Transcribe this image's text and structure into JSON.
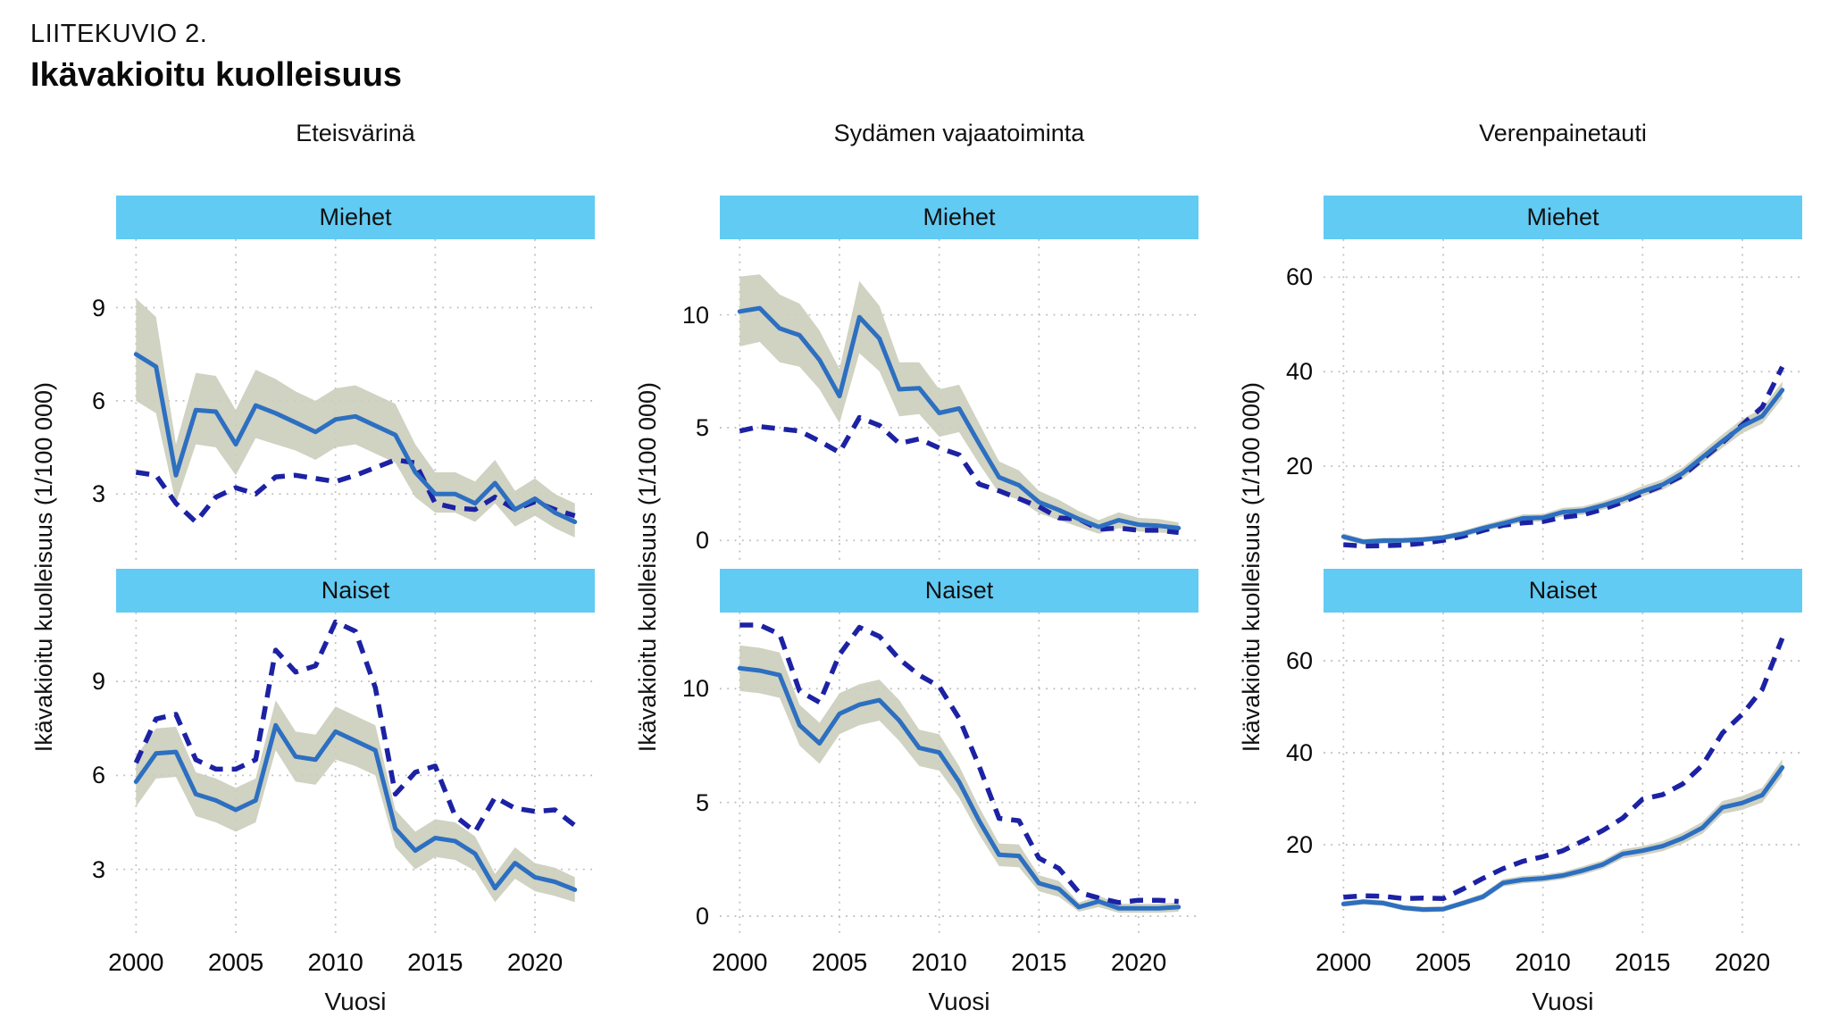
{
  "page": {
    "eyebrow": "LIITEKUVIO 2.",
    "title": "Ikävakioitu kuolleisuus"
  },
  "colors": {
    "header_bar": "#62cbf3",
    "solid_line": "#2d6fc0",
    "dashed_line": "#1c22a3",
    "band": "#cbcdbb",
    "grid": "#bdbdbd",
    "tick": "#999999"
  },
  "y_axis_label": "Ikävakioitu kuolleisuus (1/100 000)",
  "x_axis": {
    "label": "Vuosi",
    "ticks": [
      2000,
      2005,
      2010,
      2015,
      2020
    ],
    "domain": [
      1999,
      2023
    ]
  },
  "panel_labels": {
    "men": "Miehet",
    "women": "Naiset"
  },
  "years": [
    2000,
    2001,
    2002,
    2003,
    2004,
    2005,
    2006,
    2007,
    2008,
    2009,
    2010,
    2011,
    2012,
    2013,
    2014,
    2015,
    2016,
    2017,
    2018,
    2019,
    2020,
    2021,
    2022
  ],
  "chart_data": [
    {
      "type": "line",
      "title": "Eteisvärinä",
      "yticks": [
        3,
        6,
        9
      ],
      "panels": [
        {
          "label": "Miehet",
          "ylim": [
            0.85,
            11.2
          ],
          "solid": [
            7.5,
            7.1,
            3.6,
            5.7,
            5.65,
            4.6,
            5.85,
            5.6,
            5.3,
            5.0,
            5.4,
            5.5,
            5.2,
            4.9,
            3.7,
            3.0,
            3.0,
            2.7,
            3.35,
            2.5,
            2.85,
            2.4,
            2.1
          ],
          "lower": [
            6.0,
            5.6,
            2.7,
            4.6,
            4.5,
            3.6,
            4.8,
            4.6,
            4.4,
            4.1,
            4.5,
            4.6,
            4.3,
            4.0,
            2.9,
            2.4,
            2.4,
            2.1,
            2.7,
            1.95,
            2.3,
            1.9,
            1.6
          ],
          "upper": [
            9.3,
            8.7,
            4.6,
            6.9,
            6.8,
            5.7,
            7.0,
            6.7,
            6.3,
            6.0,
            6.4,
            6.5,
            6.2,
            5.9,
            4.6,
            3.7,
            3.7,
            3.4,
            4.1,
            3.1,
            3.5,
            3.0,
            2.7
          ],
          "dashed": [
            3.7,
            3.6,
            2.7,
            2.1,
            2.9,
            3.2,
            3.0,
            3.55,
            3.6,
            3.5,
            3.4,
            3.6,
            3.85,
            4.1,
            4.0,
            2.7,
            2.55,
            2.5,
            2.9,
            2.5,
            2.75,
            2.5,
            2.3
          ]
        },
        {
          "label": "Naiset",
          "ylim": [
            0.85,
            11.2
          ],
          "solid": [
            5.8,
            6.7,
            6.75,
            5.4,
            5.2,
            4.9,
            5.2,
            7.6,
            6.6,
            6.5,
            7.4,
            7.1,
            6.8,
            4.3,
            3.6,
            4.0,
            3.9,
            3.5,
            2.4,
            3.2,
            2.75,
            2.6,
            2.35
          ],
          "lower": [
            5.0,
            5.9,
            5.95,
            4.7,
            4.5,
            4.2,
            4.5,
            6.8,
            5.8,
            5.7,
            6.5,
            6.3,
            6.0,
            3.7,
            3.0,
            3.4,
            3.3,
            2.95,
            1.95,
            2.7,
            2.3,
            2.15,
            1.95
          ],
          "upper": [
            6.6,
            7.5,
            7.55,
            6.1,
            5.9,
            5.6,
            5.9,
            8.4,
            7.4,
            7.3,
            8.2,
            7.9,
            7.6,
            4.9,
            4.2,
            4.6,
            4.5,
            4.05,
            2.85,
            3.7,
            3.2,
            3.05,
            2.75
          ],
          "dashed": [
            6.4,
            7.8,
            7.95,
            6.5,
            6.2,
            6.2,
            6.5,
            10.0,
            9.3,
            9.5,
            10.9,
            10.6,
            8.8,
            5.4,
            6.1,
            6.3,
            4.7,
            4.2,
            5.3,
            4.95,
            4.85,
            4.9,
            4.4
          ]
        }
      ]
    },
    {
      "type": "line",
      "title": "Sydämen vajaatoiminta",
      "yticks": [
        0,
        5,
        10
      ],
      "panels": [
        {
          "label": "Miehet",
          "ylim": [
            -0.9,
            13.35
          ],
          "solid": [
            10.15,
            10.3,
            9.4,
            9.1,
            8.0,
            6.4,
            9.9,
            8.95,
            6.7,
            6.75,
            5.65,
            5.85,
            4.3,
            2.8,
            2.45,
            1.7,
            1.35,
            0.95,
            0.6,
            0.9,
            0.7,
            0.65,
            0.55
          ],
          "lower": [
            8.6,
            8.8,
            7.9,
            7.7,
            6.7,
            5.2,
            8.3,
            7.5,
            5.5,
            5.6,
            4.6,
            4.8,
            3.4,
            2.1,
            1.8,
            1.2,
            0.9,
            0.6,
            0.3,
            0.55,
            0.4,
            0.35,
            0.3
          ],
          "upper": [
            11.7,
            11.8,
            10.9,
            10.5,
            9.3,
            7.6,
            11.5,
            10.4,
            7.9,
            7.9,
            6.7,
            6.9,
            5.2,
            3.5,
            3.1,
            2.2,
            1.8,
            1.3,
            0.9,
            1.25,
            1.0,
            0.95,
            0.8
          ],
          "dashed": [
            4.85,
            5.05,
            4.95,
            4.85,
            4.4,
            3.9,
            5.45,
            5.1,
            4.3,
            4.5,
            4.1,
            3.8,
            2.5,
            2.2,
            1.85,
            1.5,
            1.0,
            0.95,
            0.5,
            0.55,
            0.45,
            0.45,
            0.35
          ]
        },
        {
          "label": "Naiset",
          "ylim": [
            -0.9,
            13.35
          ],
          "solid": [
            10.9,
            10.8,
            10.6,
            8.4,
            7.6,
            8.9,
            9.3,
            9.5,
            8.6,
            7.4,
            7.2,
            5.9,
            4.2,
            2.7,
            2.65,
            1.45,
            1.2,
            0.4,
            0.65,
            0.35,
            0.35,
            0.35,
            0.4
          ],
          "lower": [
            9.9,
            9.8,
            9.6,
            7.5,
            6.7,
            8.0,
            8.4,
            8.6,
            7.7,
            6.6,
            6.4,
            5.2,
            3.6,
            2.2,
            2.15,
            1.1,
            0.85,
            0.2,
            0.4,
            0.15,
            0.15,
            0.15,
            0.2
          ],
          "upper": [
            11.9,
            11.8,
            11.6,
            9.3,
            8.5,
            9.8,
            10.2,
            10.4,
            9.5,
            8.2,
            8.0,
            6.6,
            4.8,
            3.2,
            3.15,
            1.8,
            1.55,
            0.6,
            0.9,
            0.55,
            0.55,
            0.55,
            0.6
          ],
          "dashed": [
            12.8,
            12.8,
            12.4,
            9.9,
            9.4,
            11.5,
            12.7,
            12.3,
            11.3,
            10.6,
            10.1,
            8.7,
            6.6,
            4.3,
            4.2,
            2.55,
            2.1,
            1.05,
            0.8,
            0.6,
            0.7,
            0.7,
            0.65
          ]
        }
      ]
    },
    {
      "type": "line",
      "title": "Verenpainetauti",
      "yticks": [
        20,
        40,
        60
      ],
      "panels": [
        {
          "label": "Miehet",
          "ylim": [
            0,
            68
          ],
          "solid": [
            5.1,
            4.0,
            4.25,
            4.3,
            4.5,
            4.9,
            5.7,
            6.9,
            7.9,
            9.0,
            9.1,
            10.3,
            10.6,
            11.7,
            13.0,
            14.7,
            16.1,
            18.5,
            21.9,
            25.3,
            28.5,
            30.6,
            36.1
          ],
          "lower": [
            4.4,
            3.4,
            3.65,
            3.7,
            3.9,
            4.3,
            5.0,
            6.2,
            7.1,
            8.2,
            8.3,
            9.4,
            9.7,
            10.8,
            12.0,
            13.6,
            15.0,
            17.3,
            20.6,
            23.9,
            27.0,
            29.0,
            34.3
          ],
          "upper": [
            5.8,
            4.6,
            4.85,
            4.9,
            5.1,
            5.5,
            6.4,
            7.6,
            8.7,
            9.8,
            9.9,
            11.2,
            11.5,
            12.6,
            14.0,
            15.8,
            17.2,
            19.7,
            23.2,
            26.7,
            30.0,
            32.2,
            37.9
          ],
          "dashed": [
            3.4,
            3.1,
            3.2,
            3.3,
            3.7,
            4.3,
            5.2,
            6.4,
            7.5,
            8.0,
            8.3,
            9.2,
            9.7,
            10.9,
            12.4,
            14.2,
            15.9,
            18.0,
            21.5,
            25.0,
            28.8,
            32.5,
            41.0
          ]
        },
        {
          "label": "Naiset",
          "ylim": [
            0,
            70.5
          ],
          "solid": [
            7.1,
            7.6,
            7.3,
            6.3,
            5.9,
            6.0,
            7.3,
            8.7,
            11.7,
            12.4,
            12.7,
            13.3,
            14.4,
            15.7,
            18.0,
            18.7,
            19.7,
            21.4,
            23.7,
            28.1,
            29.1,
            30.8,
            36.8
          ],
          "lower": [
            6.5,
            7.0,
            6.7,
            5.7,
            5.3,
            5.4,
            6.7,
            8.0,
            10.9,
            11.6,
            11.9,
            12.5,
            13.5,
            14.8,
            17.0,
            17.7,
            18.6,
            20.2,
            22.4,
            26.7,
            27.6,
            29.2,
            35.0
          ],
          "upper": [
            7.7,
            8.2,
            7.9,
            6.9,
            6.5,
            6.6,
            7.9,
            9.4,
            12.5,
            13.2,
            13.5,
            14.1,
            15.3,
            16.6,
            19.0,
            19.7,
            20.8,
            22.6,
            25.0,
            29.5,
            30.6,
            32.4,
            38.6
          ],
          "dashed": [
            8.6,
            8.9,
            8.8,
            8.3,
            8.4,
            8.3,
            10.4,
            12.7,
            14.8,
            16.4,
            17.4,
            18.7,
            20.8,
            23.1,
            25.8,
            29.9,
            30.9,
            33.2,
            37.3,
            44.3,
            48.4,
            53.8,
            64.9
          ]
        }
      ]
    }
  ]
}
